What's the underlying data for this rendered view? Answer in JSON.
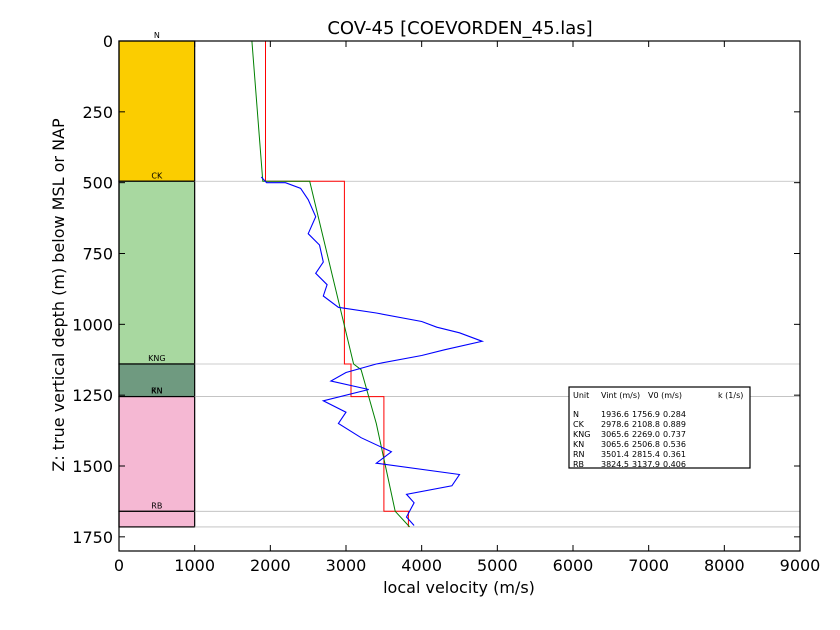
{
  "chart_data": {
    "type": "line",
    "title": "COV-45 [COEVORDEN_45.las]",
    "xlabel": "local velocity (m/s)",
    "ylabel": "Z: true vertical depth (m) below MSL or NAP",
    "xlim": [
      0,
      9000
    ],
    "ylim": [
      1800,
      0
    ],
    "xticks": [
      0,
      1000,
      2000,
      3000,
      4000,
      5000,
      6000,
      7000,
      8000,
      9000
    ],
    "yticks": [
      0,
      250,
      500,
      750,
      1000,
      1250,
      1500,
      1750
    ],
    "units": [
      {
        "name": "N",
        "top": 0,
        "base": 495,
        "color": "#fbcd00"
      },
      {
        "name": "CK",
        "top": 495,
        "base": 1140,
        "color": "#a8d8a0"
      },
      {
        "name": "KNG",
        "top": 1140,
        "base": 1255,
        "color": "#6f9a80"
      },
      {
        "name": "KN",
        "top": 1255,
        "base": 1255,
        "color": "#6f9a80"
      },
      {
        "name": "RN",
        "top": 1255,
        "base": 1660,
        "color": "#f5b8d3"
      },
      {
        "name": "RB",
        "top": 1660,
        "base": 1715,
        "color": "#f5b8d3"
      }
    ],
    "series": [
      {
        "color": "#ff0000",
        "x": [
          1936.6,
          1936.6,
          2978.6,
          2978.6,
          3065.6,
          3065.6,
          3501.4,
          3501.4,
          3824.5,
          3824.5
        ],
        "y": [
          0,
          495,
          495,
          1140,
          1140,
          1255,
          1255,
          1660,
          1660,
          1715
        ]
      },
      {
        "color": "#008000",
        "x": [
          1757,
          1900,
          2520,
          3100,
          3200,
          3300,
          3400,
          3650,
          3840
        ],
        "y": [
          0,
          495,
          495,
          1140,
          1160,
          1255,
          1350,
          1660,
          1715
        ]
      },
      {
        "color": "#0000ff",
        "x": [
          1880,
          1950,
          2200,
          2400,
          2500,
          2600,
          2500,
          2650,
          2700,
          2600,
          2750,
          2700,
          2900,
          3400,
          4000,
          4200,
          4500,
          4800,
          4300,
          4000,
          3400,
          3000,
          2800,
          3300,
          2700,
          3000,
          2900,
          3200,
          3600,
          3400,
          4500,
          4400,
          3800,
          3900,
          3800,
          3900
        ],
        "y": [
          480,
          500,
          500,
          520,
          560,
          620,
          680,
          720,
          780,
          820,
          860,
          900,
          940,
          960,
          990,
          1010,
          1030,
          1060,
          1090,
          1110,
          1140,
          1170,
          1200,
          1230,
          1270,
          1310,
          1350,
          1400,
          1450,
          1490,
          1530,
          1570,
          1600,
          1630,
          1680,
          1710
        ]
      }
    ],
    "legend": {
      "header": [
        "Unit",
        "Vint (m/s)",
        "V0 (m/s)",
        "k (1/s)"
      ],
      "rows": [
        [
          "N",
          "1936.6",
          "1756.9",
          "0.284"
        ],
        [
          "CK",
          "2978.6",
          "2108.8",
          "0.889"
        ],
        [
          "KNG",
          "3065.6",
          "2269.0",
          "0.737"
        ],
        [
          "KN",
          "3065.6",
          "2506.8",
          "0.536"
        ],
        [
          "RN",
          "3501.4",
          "2815.4",
          "0.361"
        ],
        [
          "RB",
          "3824.5",
          "3137.9",
          "0.406"
        ]
      ]
    },
    "grid": false
  }
}
